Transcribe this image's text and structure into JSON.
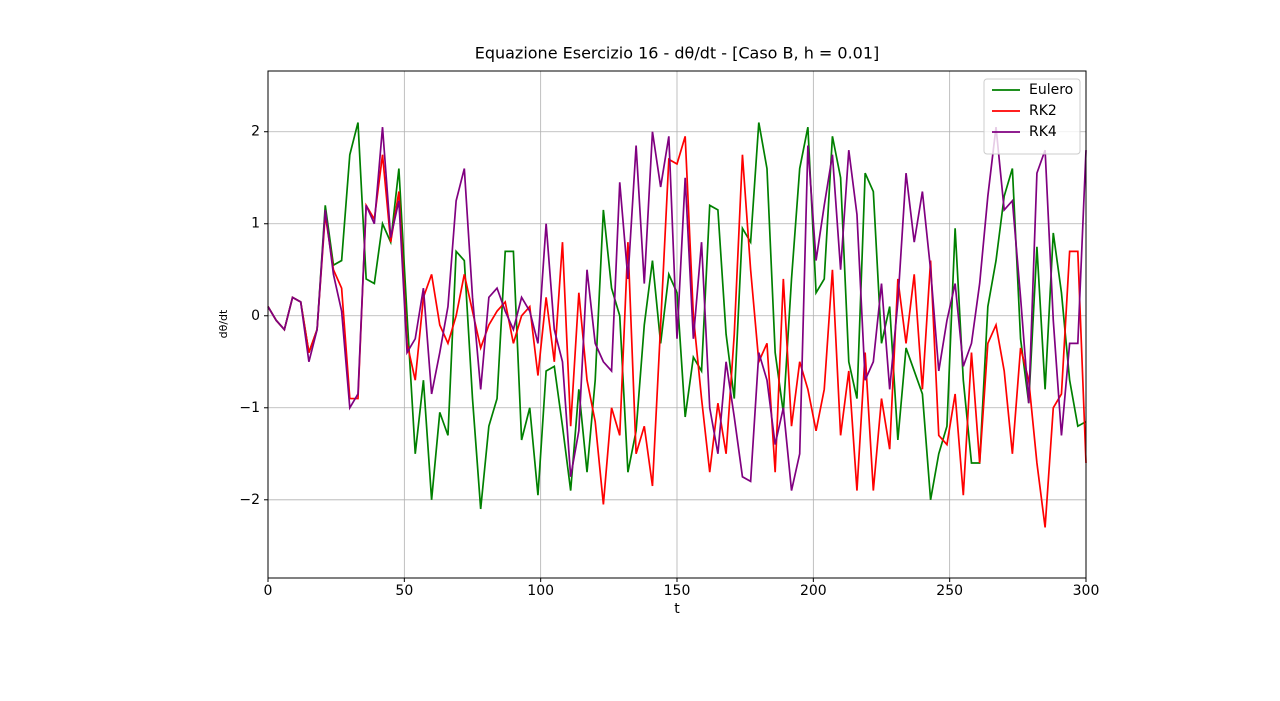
{
  "chart_data": {
    "type": "line",
    "title": "Equazione Esercizio 16 - dθ/dt - [Caso B, h = 0.01]",
    "x_label": "t",
    "y_label": "dθ/dt",
    "x": [
      0,
      3,
      6,
      9,
      12,
      15,
      18,
      21,
      24,
      27,
      30,
      33,
      36,
      39,
      42,
      45,
      48,
      51,
      54,
      57,
      60,
      63,
      66,
      69,
      72,
      75,
      78,
      81,
      84,
      87,
      90,
      93,
      96,
      99,
      102,
      105,
      108,
      111,
      114,
      117,
      120,
      123,
      126,
      129,
      132,
      135,
      138,
      141,
      144,
      147,
      150,
      153,
      156,
      159,
      162,
      165,
      168,
      171,
      174,
      177,
      180,
      183,
      186,
      189,
      192,
      195,
      198,
      201,
      204,
      207,
      210,
      213,
      216,
      219,
      222,
      225,
      228,
      231,
      234,
      237,
      240,
      243,
      246,
      249,
      252,
      255,
      258,
      261,
      264,
      267,
      270,
      273,
      276,
      279,
      282,
      285,
      288,
      291,
      294,
      297,
      300
    ],
    "series": [
      {
        "name": "Eulero",
        "color": "#008000",
        "values": [
          0.1,
          -0.05,
          -0.15,
          0.2,
          0.15,
          -0.4,
          -0.15,
          1.2,
          0.55,
          0.6,
          1.75,
          2.1,
          0.4,
          0.35,
          1.0,
          0.8,
          1.6,
          0.0,
          -1.5,
          -0.7,
          -2.0,
          -1.05,
          -1.3,
          0.7,
          0.6,
          -0.9,
          -2.1,
          -1.2,
          -0.9,
          0.7,
          0.7,
          -1.35,
          -1.0,
          -1.95,
          -0.6,
          -0.55,
          -1.2,
          -1.9,
          -0.8,
          -1.7,
          -0.7,
          1.15,
          0.3,
          0.0,
          -1.7,
          -1.25,
          -0.1,
          0.6,
          -0.3,
          0.45,
          0.25,
          -1.1,
          -0.45,
          -0.6,
          1.2,
          1.15,
          -0.2,
          -0.9,
          0.95,
          0.8,
          2.1,
          1.6,
          -0.4,
          -1.05,
          0.4,
          1.6,
          2.05,
          0.25,
          0.4,
          1.95,
          1.5,
          -0.5,
          -0.9,
          1.55,
          1.35,
          -0.3,
          0.1,
          -1.35,
          -0.35,
          -0.6,
          -0.85,
          -2.0,
          -1.5,
          -1.2,
          0.95,
          -0.7,
          -1.6,
          -1.6,
          0.1,
          0.6,
          1.3,
          1.6,
          -0.25,
          -0.95,
          0.75,
          -0.8,
          0.9,
          0.25,
          -0.7,
          -1.2,
          -1.15
        ]
      },
      {
        "name": "RK2",
        "color": "#ff0000",
        "values": [
          0.1,
          -0.05,
          -0.15,
          0.2,
          0.15,
          -0.4,
          -0.15,
          1.1,
          0.5,
          0.3,
          -0.9,
          -0.9,
          1.2,
          1.05,
          1.75,
          0.8,
          1.35,
          -0.3,
          -0.7,
          0.2,
          0.45,
          -0.1,
          -0.3,
          0.0,
          0.45,
          0.05,
          -0.35,
          -0.1,
          0.05,
          0.15,
          -0.3,
          0.0,
          0.1,
          -0.65,
          0.2,
          -0.5,
          0.8,
          -1.2,
          0.25,
          -0.7,
          -1.15,
          -2.05,
          -1.0,
          -1.3,
          0.8,
          -1.5,
          -1.2,
          -1.85,
          -0.1,
          1.7,
          1.65,
          1.95,
          0.0,
          -0.9,
          -1.7,
          -0.95,
          -1.5,
          -0.2,
          1.75,
          0.5,
          -0.5,
          -0.3,
          -1.7,
          0.4,
          -1.2,
          -0.5,
          -0.8,
          -1.25,
          -0.8,
          0.5,
          -1.3,
          -0.6,
          -1.9,
          -0.4,
          -1.9,
          -0.9,
          -1.45,
          0.4,
          -0.3,
          0.45,
          -0.8,
          0.6,
          -1.3,
          -1.4,
          -0.85,
          -1.95,
          -0.4,
          -1.6,
          -0.3,
          -0.1,
          -0.6,
          -1.5,
          -0.35,
          -0.7,
          -1.6,
          -2.3,
          -1.0,
          -0.85,
          0.7,
          0.7,
          -1.6
        ]
      },
      {
        "name": "RK4",
        "color": "#800080",
        "values": [
          0.1,
          -0.05,
          -0.15,
          0.2,
          0.15,
          -0.5,
          -0.15,
          1.15,
          0.45,
          0.05,
          -1.0,
          -0.85,
          1.2,
          1.0,
          2.05,
          0.85,
          1.25,
          -0.4,
          -0.25,
          0.3,
          -0.85,
          -0.4,
          0.1,
          1.25,
          1.6,
          0.2,
          -0.8,
          0.2,
          0.3,
          0.05,
          -0.15,
          0.2,
          0.05,
          -0.3,
          1.0,
          -0.15,
          -0.5,
          -1.75,
          -1.25,
          0.5,
          -0.3,
          -0.5,
          -0.6,
          1.45,
          0.4,
          1.85,
          0.35,
          2.0,
          1.4,
          1.95,
          -0.25,
          1.5,
          -0.25,
          0.8,
          -1.0,
          -1.5,
          -0.5,
          -1.1,
          -1.75,
          -1.8,
          -0.4,
          -0.7,
          -1.4,
          -1.0,
          -1.9,
          -1.5,
          1.85,
          0.6,
          1.2,
          1.75,
          0.5,
          1.8,
          1.1,
          -0.7,
          -0.5,
          0.35,
          -0.8,
          0.15,
          1.55,
          0.8,
          1.35,
          0.5,
          -0.6,
          -0.05,
          0.35,
          -0.55,
          -0.3,
          0.35,
          1.3,
          2.05,
          1.15,
          1.25,
          0.2,
          -0.95,
          1.55,
          1.8,
          -0.05,
          -1.3,
          -0.3,
          -0.3,
          1.8
        ]
      }
    ],
    "xlim": [
      0,
      300
    ],
    "xticks": [
      0,
      50,
      100,
      150,
      200,
      250,
      300
    ],
    "ylim": [
      -2.85,
      2.66
    ],
    "yticks": [
      {
        "value": -2,
        "label": "−2"
      },
      {
        "value": -1,
        "label": "−1"
      },
      0,
      1,
      2
    ],
    "grid": true,
    "legend": "upper right"
  }
}
